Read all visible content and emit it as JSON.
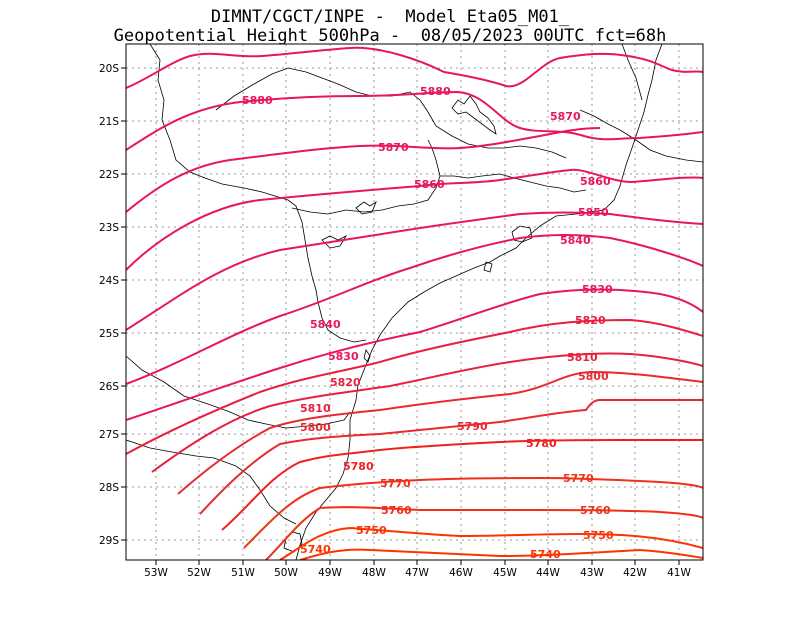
{
  "header": {
    "line1": "DIMNT/CGCT/INPE -  Model Eta05_M01_",
    "line2": "Geopotential Height 500hPa -  08/05/2023 00UTC fct=68h"
  },
  "axes": {
    "lon_labels": [
      "53W",
      "52W",
      "51W",
      "50W",
      "49W",
      "48W",
      "47W",
      "46W",
      "45W",
      "44W",
      "43W",
      "42W",
      "41W"
    ],
    "lat_labels": [
      "20S",
      "21S",
      "22S",
      "23S",
      "24S",
      "25S",
      "26S",
      "27S",
      "28S",
      "29S"
    ]
  },
  "colors": {
    "high": "#e8155f",
    "low": "#ff3300",
    "coast": "#000000",
    "grid": "#999999"
  },
  "contour_labels": {
    "5880": "5880",
    "5870": "5870",
    "5860": "5860",
    "5850": "5850",
    "5840": "5840",
    "5830": "5830",
    "5820": "5820",
    "5810": "5810",
    "5800": "5800",
    "5790": "5790",
    "5780": "5780",
    "5770": "5770",
    "5760": "5760",
    "5750": "5750",
    "5740": "5740"
  }
}
